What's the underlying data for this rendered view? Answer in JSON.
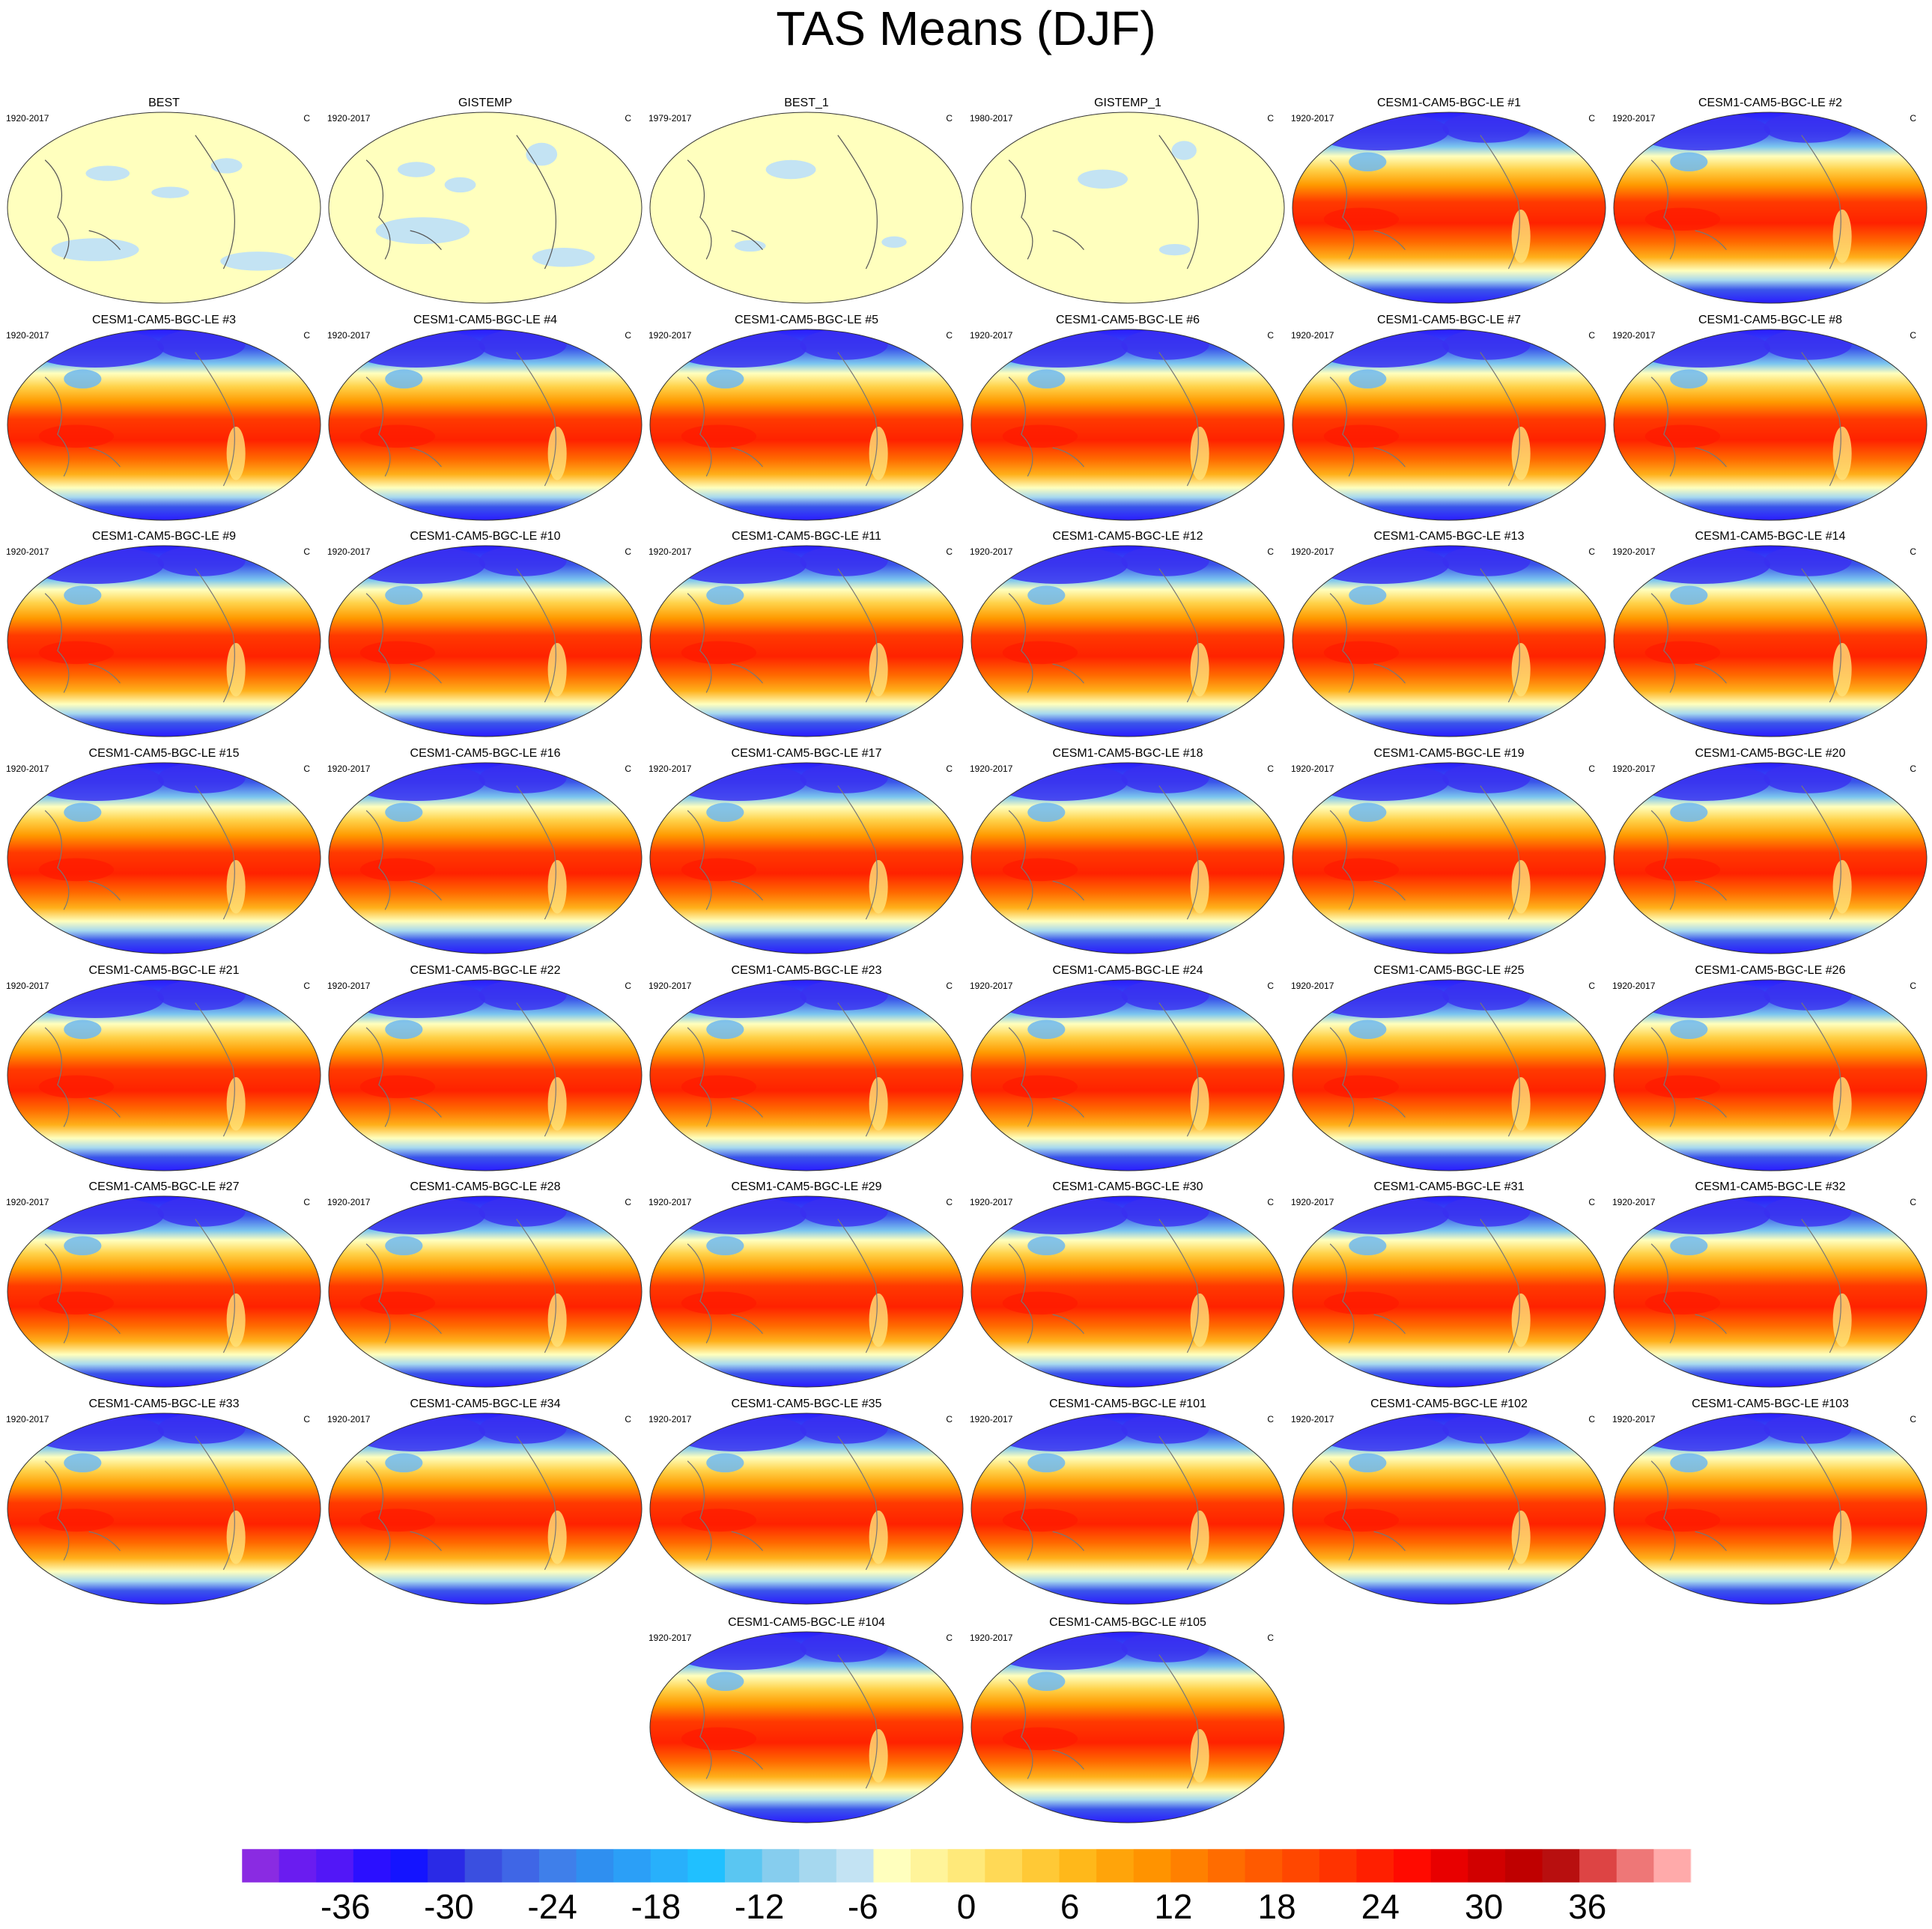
{
  "chart_data": {
    "type": "heatmap",
    "title": "TAS Means (DJF)",
    "units": "C",
    "projection": "robinson-like global maps, 0-360 centered on Pacific",
    "panel_grid": "6 columns",
    "observations_color_mode": "near-zero (pale yellow with light-blue patches)",
    "model_color_mode": "full temperature field",
    "panels": [
      {
        "title": "BEST",
        "period": "1920-2017",
        "units": "C",
        "kind": "obs"
      },
      {
        "title": "GISTEMP",
        "period": "1920-2017",
        "units": "C",
        "kind": "obs"
      },
      {
        "title": "BEST_1",
        "period": "1979-2017",
        "units": "C",
        "kind": "obs"
      },
      {
        "title": "GISTEMP_1",
        "period": "1980-2017",
        "units": "C",
        "kind": "obs"
      },
      {
        "title": "CESM1-CAM5-BGC-LE #1",
        "period": "1920-2017",
        "units": "C",
        "kind": "model"
      },
      {
        "title": "CESM1-CAM5-BGC-LE #2",
        "period": "1920-2017",
        "units": "C",
        "kind": "model"
      },
      {
        "title": "CESM1-CAM5-BGC-LE #3",
        "period": "1920-2017",
        "units": "C",
        "kind": "model"
      },
      {
        "title": "CESM1-CAM5-BGC-LE #4",
        "period": "1920-2017",
        "units": "C",
        "kind": "model"
      },
      {
        "title": "CESM1-CAM5-BGC-LE #5",
        "period": "1920-2017",
        "units": "C",
        "kind": "model"
      },
      {
        "title": "CESM1-CAM5-BGC-LE #6",
        "period": "1920-2017",
        "units": "C",
        "kind": "model"
      },
      {
        "title": "CESM1-CAM5-BGC-LE #7",
        "period": "1920-2017",
        "units": "C",
        "kind": "model"
      },
      {
        "title": "CESM1-CAM5-BGC-LE #8",
        "period": "1920-2017",
        "units": "C",
        "kind": "model"
      },
      {
        "title": "CESM1-CAM5-BGC-LE #9",
        "period": "1920-2017",
        "units": "C",
        "kind": "model"
      },
      {
        "title": "CESM1-CAM5-BGC-LE #10",
        "period": "1920-2017",
        "units": "C",
        "kind": "model"
      },
      {
        "title": "CESM1-CAM5-BGC-LE #11",
        "period": "1920-2017",
        "units": "C",
        "kind": "model"
      },
      {
        "title": "CESM1-CAM5-BGC-LE #12",
        "period": "1920-2017",
        "units": "C",
        "kind": "model"
      },
      {
        "title": "CESM1-CAM5-BGC-LE #13",
        "period": "1920-2017",
        "units": "C",
        "kind": "model"
      },
      {
        "title": "CESM1-CAM5-BGC-LE #14",
        "period": "1920-2017",
        "units": "C",
        "kind": "model"
      },
      {
        "title": "CESM1-CAM5-BGC-LE #15",
        "period": "1920-2017",
        "units": "C",
        "kind": "model"
      },
      {
        "title": "CESM1-CAM5-BGC-LE #16",
        "period": "1920-2017",
        "units": "C",
        "kind": "model"
      },
      {
        "title": "CESM1-CAM5-BGC-LE #17",
        "period": "1920-2017",
        "units": "C",
        "kind": "model"
      },
      {
        "title": "CESM1-CAM5-BGC-LE #18",
        "period": "1920-2017",
        "units": "C",
        "kind": "model"
      },
      {
        "title": "CESM1-CAM5-BGC-LE #19",
        "period": "1920-2017",
        "units": "C",
        "kind": "model"
      },
      {
        "title": "CESM1-CAM5-BGC-LE #20",
        "period": "1920-2017",
        "units": "C",
        "kind": "model"
      },
      {
        "title": "CESM1-CAM5-BGC-LE #21",
        "period": "1920-2017",
        "units": "C",
        "kind": "model"
      },
      {
        "title": "CESM1-CAM5-BGC-LE #22",
        "period": "1920-2017",
        "units": "C",
        "kind": "model"
      },
      {
        "title": "CESM1-CAM5-BGC-LE #23",
        "period": "1920-2017",
        "units": "C",
        "kind": "model"
      },
      {
        "title": "CESM1-CAM5-BGC-LE #24",
        "period": "1920-2017",
        "units": "C",
        "kind": "model"
      },
      {
        "title": "CESM1-CAM5-BGC-LE #25",
        "period": "1920-2017",
        "units": "C",
        "kind": "model"
      },
      {
        "title": "CESM1-CAM5-BGC-LE #26",
        "period": "1920-2017",
        "units": "C",
        "kind": "model"
      },
      {
        "title": "CESM1-CAM5-BGC-LE #27",
        "period": "1920-2017",
        "units": "C",
        "kind": "model"
      },
      {
        "title": "CESM1-CAM5-BGC-LE #28",
        "period": "1920-2017",
        "units": "C",
        "kind": "model"
      },
      {
        "title": "CESM1-CAM5-BGC-LE #29",
        "period": "1920-2017",
        "units": "C",
        "kind": "model"
      },
      {
        "title": "CESM1-CAM5-BGC-LE #30",
        "period": "1920-2017",
        "units": "C",
        "kind": "model"
      },
      {
        "title": "CESM1-CAM5-BGC-LE #31",
        "period": "1920-2017",
        "units": "C",
        "kind": "model"
      },
      {
        "title": "CESM1-CAM5-BGC-LE #32",
        "period": "1920-2017",
        "units": "C",
        "kind": "model"
      },
      {
        "title": "CESM1-CAM5-BGC-LE #33",
        "period": "1920-2017",
        "units": "C",
        "kind": "model"
      },
      {
        "title": "CESM1-CAM5-BGC-LE #34",
        "period": "1920-2017",
        "units": "C",
        "kind": "model"
      },
      {
        "title": "CESM1-CAM5-BGC-LE #35",
        "period": "1920-2017",
        "units": "C",
        "kind": "model"
      },
      {
        "title": "CESM1-CAM5-BGC-LE #101",
        "period": "1920-2017",
        "units": "C",
        "kind": "model"
      },
      {
        "title": "CESM1-CAM5-BGC-LE #102",
        "period": "1920-2017",
        "units": "C",
        "kind": "model"
      },
      {
        "title": "CESM1-CAM5-BGC-LE #103",
        "period": "1920-2017",
        "units": "C",
        "kind": "model"
      },
      {
        "title": "CESM1-CAM5-BGC-LE #104",
        "period": "1920-2017",
        "units": "C",
        "kind": "model"
      },
      {
        "title": "CESM1-CAM5-BGC-LE #105",
        "period": "1920-2017",
        "units": "C",
        "kind": "model"
      }
    ],
    "colorbar": {
      "orientation": "horizontal",
      "placement": "bottom",
      "range": [
        -42,
        42
      ],
      "step": 2,
      "tick_labels": [
        "-36",
        "-30",
        "-24",
        "-18",
        "-12",
        "-6",
        "0",
        "6",
        "12",
        "18",
        "24",
        "30",
        "36"
      ],
      "colors": [
        "#8a2be2",
        "#6a1cf0",
        "#5217f7",
        "#2b0fff",
        "#1414ff",
        "#2a2ae6",
        "#3a4fe0",
        "#3f66e6",
        "#3f7fea",
        "#2f8ff0",
        "#2b9ff7",
        "#28b0fb",
        "#20c0ff",
        "#5ac6f2",
        "#86cdee",
        "#a6d8ef",
        "#c3e3f3",
        "#ffffbe",
        "#fff49a",
        "#ffe97a",
        "#ffd956",
        "#ffc936",
        "#ffb81a",
        "#ffa40a",
        "#ff9300",
        "#ff8000",
        "#ff6c00",
        "#ff5a00",
        "#ff4700",
        "#ff3300",
        "#ff1f00",
        "#ff0a00",
        "#e80000",
        "#d10000",
        "#bf0000",
        "#b80f0f",
        "#dd4444",
        "#ee7777",
        "#ffaaaa"
      ]
    }
  }
}
